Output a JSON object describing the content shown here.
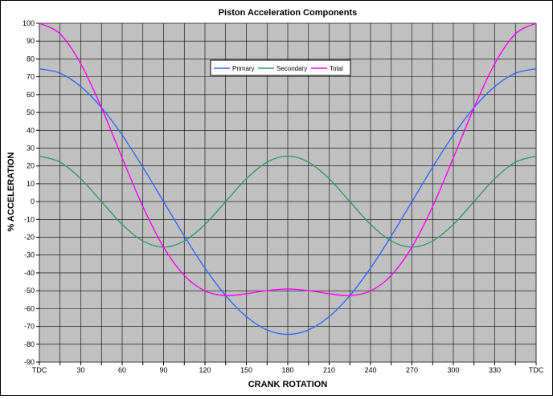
{
  "chart_data": {
    "type": "line",
    "title": "Piston Acceleration Components",
    "xlabel": "CRANK ROTATION",
    "ylabel": "% ACCELERATION",
    "xlim": [
      0,
      360
    ],
    "ylim": [
      -90,
      100
    ],
    "y_ticks": [
      100,
      90,
      80,
      70,
      60,
      50,
      40,
      30,
      20,
      10,
      0,
      -10,
      -20,
      -30,
      -40,
      -50,
      -60,
      -70,
      -80,
      -90
    ],
    "x_tick_labels": [
      {
        "x": 0,
        "label": "TDC"
      },
      {
        "x": 30,
        "label": "30"
      },
      {
        "x": 60,
        "label": "60"
      },
      {
        "x": 90,
        "label": "90"
      },
      {
        "x": 120,
        "label": "120"
      },
      {
        "x": 150,
        "label": "150"
      },
      {
        "x": 180,
        "label": "180"
      },
      {
        "x": 210,
        "label": "210"
      },
      {
        "x": 240,
        "label": "240"
      },
      {
        "x": 270,
        "label": "270"
      },
      {
        "x": 300,
        "label": "300"
      },
      {
        "x": 330,
        "label": "330"
      },
      {
        "x": 360,
        "label": "TDC"
      }
    ],
    "x_minor_step": 15,
    "grid": true,
    "background": "#c0c0c0",
    "legend_position": "top-center",
    "x": [
      0,
      15,
      30,
      45,
      60,
      75,
      90,
      105,
      120,
      135,
      150,
      165,
      180,
      195,
      210,
      225,
      240,
      255,
      270,
      285,
      300,
      315,
      330,
      345,
      360
    ],
    "series": [
      {
        "name": "Primary",
        "color": "#3366ff",
        "values": [
          74.5,
          72,
          64.5,
          52.7,
          37.3,
          19.3,
          0,
          -19.3,
          -37.3,
          -52.7,
          -64.5,
          -72,
          -74.5,
          -72,
          -64.5,
          -52.7,
          -37.3,
          -19.3,
          0,
          19.3,
          37.3,
          52.7,
          64.5,
          72,
          74.5
        ]
      },
      {
        "name": "Secondary",
        "color": "#339966",
        "values": [
          25.5,
          22.1,
          12.8,
          0,
          -12.8,
          -22.1,
          -25.5,
          -22.1,
          -12.8,
          0,
          12.8,
          22.1,
          25.5,
          22.1,
          12.8,
          0,
          -12.8,
          -22.1,
          -25.5,
          -22.1,
          -12.8,
          0,
          12.8,
          22.1,
          25.5
        ]
      },
      {
        "name": "Total",
        "color": "#ff00ff",
        "values": [
          100,
          94.1,
          77.3,
          52.7,
          24.5,
          -2.8,
          -25.5,
          -41.4,
          -50.1,
          -52.7,
          -51.7,
          -49.9,
          -49,
          -49.9,
          -51.7,
          -52.7,
          -50.1,
          -41.4,
          -25.5,
          -2.8,
          24.5,
          52.7,
          77.3,
          94.1,
          100
        ]
      }
    ]
  }
}
